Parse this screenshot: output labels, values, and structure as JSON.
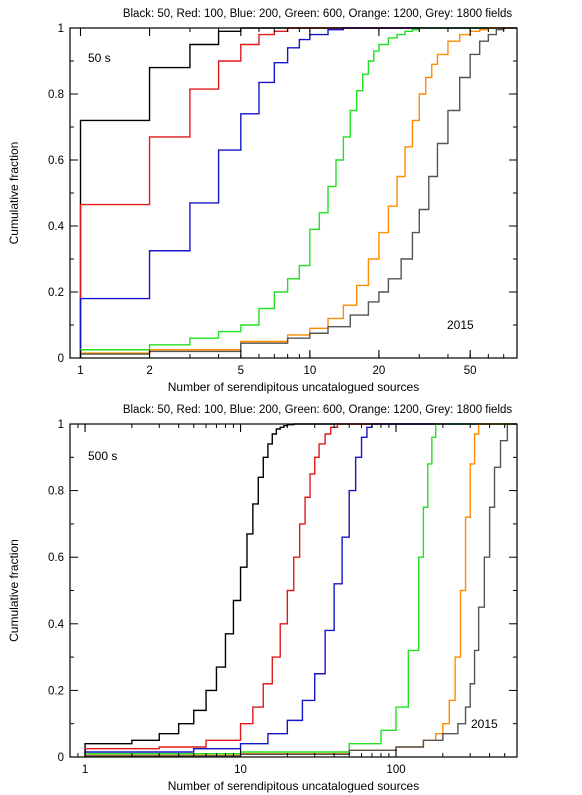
{
  "chart_data": [
    {
      "type": "line",
      "step": true,
      "title": "Black: 50, Red: 100, Blue: 200, Green: 600, Orange: 1200, Grey: 1800 fields",
      "xlabel": "Number of serendipitous uncatalogued sources",
      "ylabel": "Cumulative fraction",
      "xscale": "log",
      "xlim": [
        0.9,
        80
      ],
      "ylim": [
        0,
        1
      ],
      "xticks": [
        1,
        2,
        5,
        10,
        20,
        50
      ],
      "xtick_labels": [
        "1",
        "2",
        "5",
        "10",
        "20",
        "50"
      ],
      "yticks": [
        0,
        0.2,
        0.4,
        0.6,
        0.8,
        1
      ],
      "ytick_labels": [
        "0",
        "0.2",
        "0.4",
        "0.6",
        "0.8",
        "1"
      ],
      "annotations": [
        {
          "text": "50 s",
          "position": "top-left"
        },
        {
          "text": "2015",
          "position": "bottom-right"
        }
      ],
      "series": [
        {
          "color": "#000000",
          "x": [
            1,
            2,
            3,
            4,
            5
          ],
          "y": [
            0.72,
            0.88,
            0.95,
            0.99,
            1.0
          ]
        },
        {
          "color": "#e0191b",
          "x": [
            1,
            2,
            3,
            4,
            5,
            6,
            7,
            8
          ],
          "y": [
            0.465,
            0.67,
            0.815,
            0.9,
            0.95,
            0.98,
            0.99,
            1.0
          ]
        },
        {
          "color": "#1414c8",
          "x": [
            1,
            2,
            3,
            4,
            5,
            6,
            7,
            8,
            9,
            10,
            12,
            14
          ],
          "y": [
            0.18,
            0.325,
            0.47,
            0.63,
            0.74,
            0.835,
            0.895,
            0.94,
            0.965,
            0.98,
            0.995,
            1.0
          ]
        },
        {
          "color": "#22e022",
          "x": [
            1,
            2,
            3,
            4,
            5,
            6,
            7,
            8,
            9,
            10,
            11,
            12,
            13,
            14,
            15,
            16,
            17,
            18,
            19,
            20,
            22,
            24,
            26,
            28,
            30
          ],
          "y": [
            0.025,
            0.04,
            0.06,
            0.08,
            0.1,
            0.15,
            0.2,
            0.24,
            0.28,
            0.39,
            0.44,
            0.52,
            0.6,
            0.67,
            0.75,
            0.81,
            0.86,
            0.9,
            0.93,
            0.95,
            0.97,
            0.98,
            0.99,
            0.995,
            1.0
          ]
        },
        {
          "color": "#ff8c00",
          "x": [
            1,
            2,
            5,
            8,
            10,
            12,
            14,
            16,
            18,
            20,
            22,
            24,
            26,
            28,
            30,
            32,
            34,
            36,
            40,
            45,
            50,
            55,
            60
          ],
          "y": [
            0.015,
            0.025,
            0.05,
            0.07,
            0.09,
            0.12,
            0.16,
            0.22,
            0.3,
            0.38,
            0.46,
            0.55,
            0.64,
            0.72,
            0.8,
            0.85,
            0.89,
            0.92,
            0.96,
            0.98,
            0.99,
            0.995,
            1.0
          ]
        },
        {
          "color": "#555555",
          "x": [
            1,
            2,
            5,
            8,
            10,
            12,
            15,
            18,
            20,
            22,
            25,
            28,
            30,
            33,
            36,
            40,
            45,
            50,
            55,
            60,
            65,
            70
          ],
          "y": [
            0.012,
            0.02,
            0.045,
            0.06,
            0.075,
            0.095,
            0.13,
            0.17,
            0.2,
            0.24,
            0.3,
            0.38,
            0.45,
            0.55,
            0.65,
            0.75,
            0.85,
            0.92,
            0.96,
            0.98,
            0.995,
            1.0
          ]
        }
      ]
    },
    {
      "type": "line",
      "step": true,
      "title": "Black: 50, Red: 100, Blue: 200, Green: 600, Orange: 1200, Grey: 1800 fields",
      "xlabel": "Number of serendipitous uncatalogued sources",
      "ylabel": "Cumulative fraction",
      "xscale": "log",
      "xlim": [
        0.8,
        600
      ],
      "ylim": [
        0,
        1
      ],
      "xticks": [
        1,
        10,
        100
      ],
      "xtick_labels": [
        "1",
        "10",
        "100"
      ],
      "yticks": [
        0,
        0.2,
        0.4,
        0.6,
        0.8,
        1
      ],
      "ytick_labels": [
        "0",
        "0.2",
        "0.4",
        "0.6",
        "0.8",
        "1"
      ],
      "annotations": [
        {
          "text": "500 s",
          "position": "top-left"
        },
        {
          "text": "2015",
          "position": "bottom-right"
        }
      ],
      "series": [
        {
          "color": "#000000",
          "x": [
            1,
            2,
            3,
            4,
            5,
            6,
            7,
            8,
            9,
            10,
            11,
            12,
            13,
            14,
            15,
            16,
            17,
            18,
            19,
            20,
            22
          ],
          "y": [
            0.04,
            0.05,
            0.07,
            0.1,
            0.14,
            0.2,
            0.27,
            0.37,
            0.47,
            0.57,
            0.67,
            0.76,
            0.84,
            0.9,
            0.94,
            0.97,
            0.985,
            0.99,
            0.995,
            0.998,
            1.0
          ]
        },
        {
          "color": "#e0191b",
          "x": [
            1,
            3,
            6,
            10,
            12,
            14,
            16,
            18,
            20,
            22,
            24,
            26,
            28,
            30,
            32,
            35,
            38,
            42
          ],
          "y": [
            0.025,
            0.03,
            0.05,
            0.1,
            0.15,
            0.22,
            0.3,
            0.4,
            0.5,
            0.6,
            0.7,
            0.78,
            0.85,
            0.9,
            0.94,
            0.97,
            0.99,
            1.0
          ]
        },
        {
          "color": "#1414c8",
          "x": [
            1,
            5,
            10,
            15,
            20,
            25,
            30,
            35,
            40,
            45,
            50,
            55,
            60,
            65,
            70
          ],
          "y": [
            0.015,
            0.025,
            0.04,
            0.07,
            0.11,
            0.17,
            0.25,
            0.38,
            0.52,
            0.66,
            0.8,
            0.9,
            0.96,
            0.99,
            1.0
          ]
        },
        {
          "color": "#22e022",
          "x": [
            1,
            10,
            50,
            80,
            100,
            120,
            140,
            150,
            160,
            170,
            180
          ],
          "y": [
            0.01,
            0.015,
            0.04,
            0.08,
            0.15,
            0.32,
            0.6,
            0.75,
            0.88,
            0.96,
            1.0
          ]
        },
        {
          "color": "#ff8c00",
          "x": [
            1,
            10,
            50,
            100,
            150,
            180,
            200,
            220,
            240,
            260,
            280,
            300,
            320,
            340
          ],
          "y": [
            0.005,
            0.01,
            0.02,
            0.03,
            0.05,
            0.07,
            0.1,
            0.17,
            0.3,
            0.5,
            0.72,
            0.88,
            0.97,
            1.0
          ]
        },
        {
          "color": "#555555",
          "x": [
            1,
            10,
            50,
            100,
            150,
            200,
            250,
            280,
            300,
            320,
            340,
            370,
            400,
            430,
            470,
            520
          ],
          "y": [
            0.003,
            0.008,
            0.02,
            0.03,
            0.05,
            0.07,
            0.1,
            0.15,
            0.22,
            0.32,
            0.45,
            0.6,
            0.75,
            0.87,
            0.95,
            1.0
          ]
        }
      ]
    }
  ]
}
